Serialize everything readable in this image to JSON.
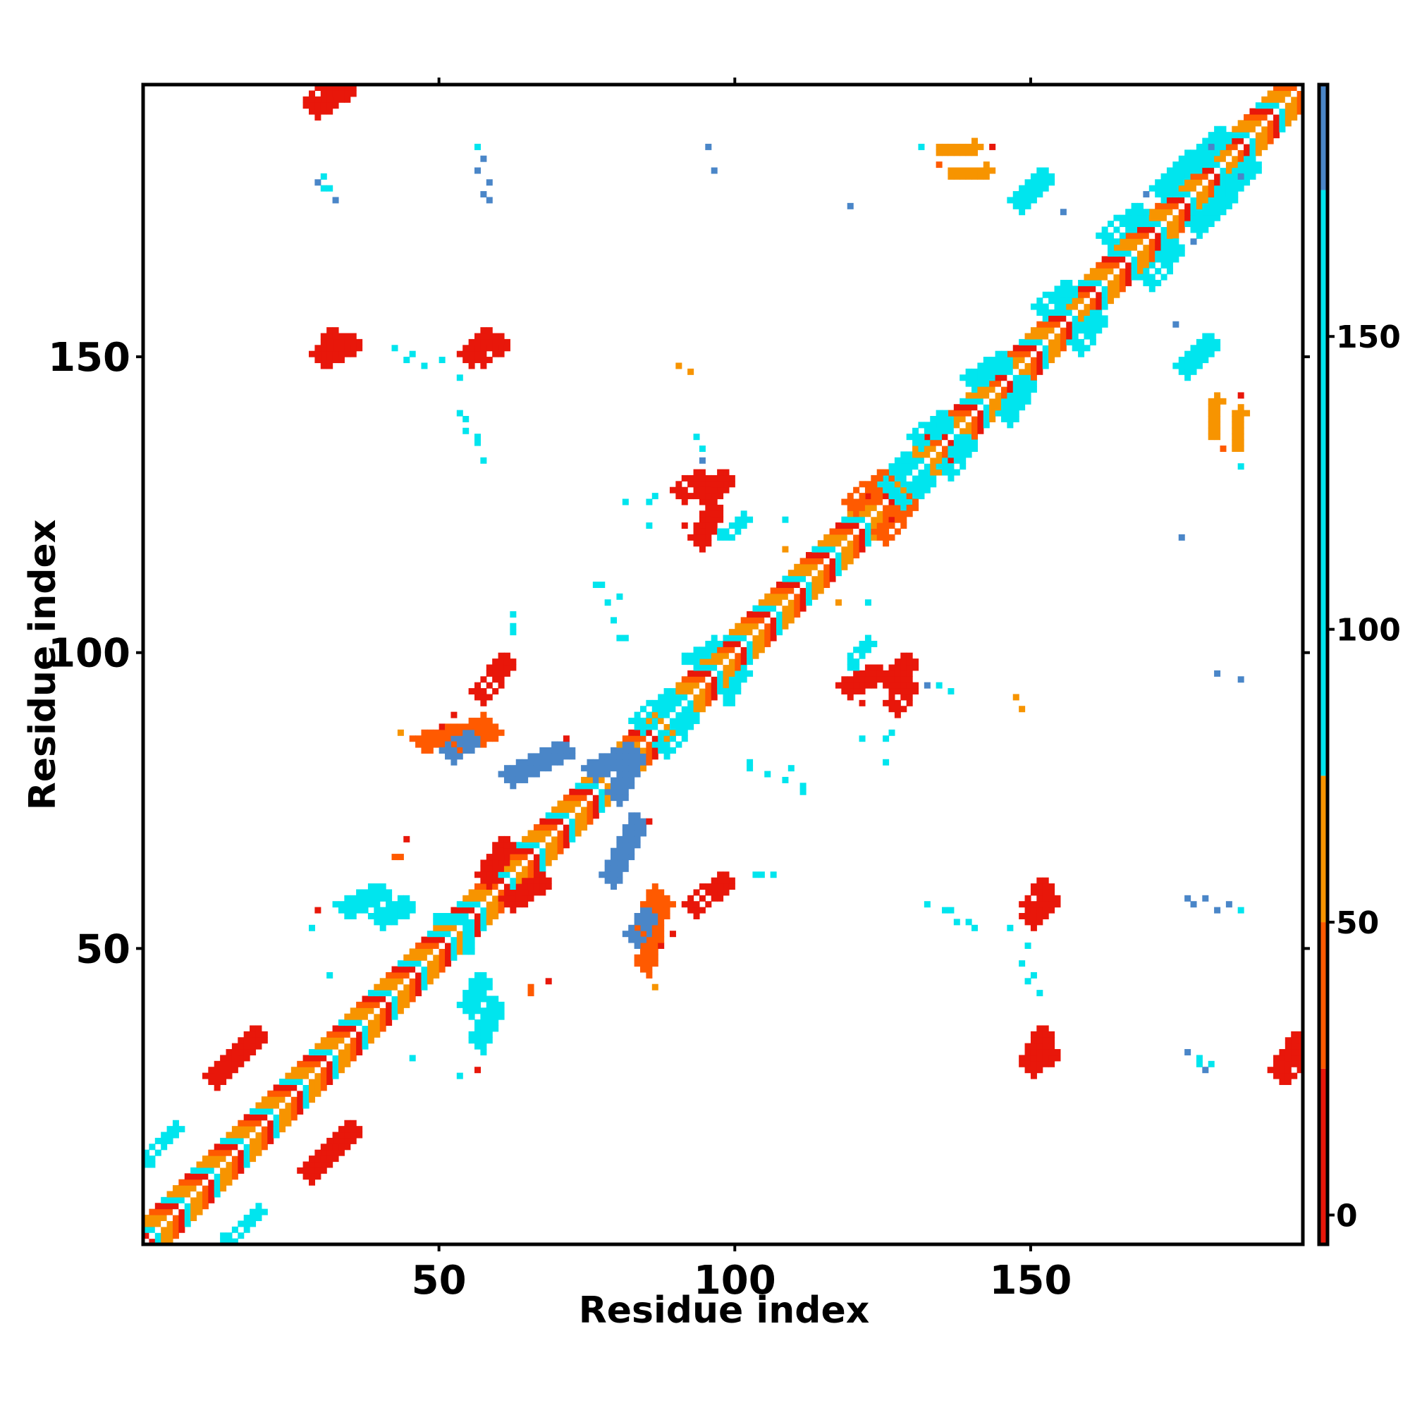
{
  "chart_data": {
    "type": "heatmap",
    "title": "",
    "xlabel": "Residue index",
    "ylabel": "Residue index",
    "xlim": [
      0,
      196
    ],
    "ylim": [
      0,
      196
    ],
    "xticks": [
      50,
      100,
      150
    ],
    "yticks": [
      50,
      100,
      150
    ],
    "colorbar": {
      "ticks": [
        0,
        50,
        100,
        150
      ],
      "range": [
        -5,
        193
      ],
      "bands": [
        {
          "from": -5,
          "to": 25,
          "color": "#e8170a"
        },
        {
          "from": 25,
          "to": 50,
          "color": "#ff5a00"
        },
        {
          "from": 50,
          "to": 75,
          "color": "#f79400"
        },
        {
          "from": 75,
          "to": 175,
          "color": "#00e5ee"
        },
        {
          "from": 175,
          "to": 193,
          "color": "#4a86c8"
        }
      ]
    },
    "colors": {
      "red": "#e8170a",
      "red_orange": "#ff5a00",
      "orange": "#f79400",
      "cyan": "#00e5ee",
      "blue": "#4a86c8"
    },
    "symmetric": true,
    "diagonal": {
      "start": 1,
      "end": 196,
      "width": 4
    },
    "segments": [
      {
        "from": [
          12,
          28
        ],
        "to": [
          20,
          36
        ],
        "width": 2,
        "color": "red"
      },
      {
        "from": [
          14,
          1
        ],
        "to": [
          20,
          6
        ],
        "width": 1,
        "color": "cyan"
      },
      {
        "from": [
          34,
          57
        ],
        "to": [
          41,
          60
        ],
        "width": 2,
        "color": "cyan"
      },
      {
        "from": [
          40,
          55
        ],
        "to": [
          45,
          58
        ],
        "width": 2,
        "color": "cyan"
      },
      {
        "from": [
          50,
          55
        ],
        "to": [
          55,
          55
        ],
        "width": 1,
        "color": "cyan"
      },
      {
        "from": [
          53,
          85
        ],
        "to": [
          59,
          88
        ],
        "width": 3,
        "color": "red_orange"
      },
      {
        "from": [
          58,
          62
        ],
        "to": [
          62,
          68
        ],
        "width": 2,
        "color": "red"
      },
      {
        "from": [
          76,
          80
        ],
        "to": [
          83,
          84
        ],
        "width": 2,
        "color": "blue"
      },
      {
        "from": [
          72,
          84
        ],
        "to": [
          62,
          79
        ],
        "width": 2,
        "color": "blue"
      },
      {
        "from": [
          47,
          85
        ],
        "to": [
          53,
          87
        ],
        "width": 2,
        "color": "red_orange"
      },
      {
        "from": [
          57,
          93
        ],
        "to": [
          62,
          99
        ],
        "width": 2,
        "color": "red"
      },
      {
        "from": [
          84,
          88
        ],
        "to": [
          90,
          93
        ],
        "width": 2,
        "color": "cyan"
      },
      {
        "from": [
          92,
          99
        ],
        "to": [
          97,
          102
        ],
        "width": 1,
        "color": "cyan"
      },
      {
        "from": [
          94,
          119
        ],
        "to": [
          97,
          125
        ],
        "width": 2,
        "color": "red"
      },
      {
        "from": [
          98,
          120
        ],
        "to": [
          102,
          123
        ],
        "width": 1,
        "color": "cyan"
      },
      {
        "from": [
          120,
          125
        ],
        "to": [
          126,
          130
        ],
        "width": 2,
        "color": "red_orange"
      },
      {
        "from": [
          126,
          128
        ],
        "to": [
          130,
          133
        ],
        "width": 2,
        "color": "cyan"
      },
      {
        "from": [
          131,
          136
        ],
        "to": [
          136,
          140
        ],
        "width": 2,
        "color": "cyan"
      },
      {
        "from": [
          140,
          146
        ],
        "to": [
          146,
          150
        ],
        "width": 2,
        "color": "cyan"
      },
      {
        "from": [
          148,
          176
        ],
        "to": [
          153,
          181
        ],
        "width": 2,
        "color": "cyan"
      },
      {
        "from": [
          152,
          158
        ],
        "to": [
          157,
          162
        ],
        "width": 2,
        "color": "cyan"
      },
      {
        "from": [
          163,
          170
        ],
        "to": [
          169,
          175
        ],
        "width": 2,
        "color": "cyan"
      },
      {
        "from": [
          172,
          178
        ],
        "to": [
          178,
          184
        ],
        "width": 2,
        "color": "cyan"
      },
      {
        "from": [
          178,
          183
        ],
        "to": [
          183,
          188
        ],
        "width": 2,
        "color": "cyan"
      },
      {
        "from": [
          150,
          57
        ],
        "to": [
          153,
          61
        ],
        "width": 2,
        "color": "red"
      },
      {
        "from": [
          150,
          31
        ],
        "to": [
          153,
          36
        ],
        "width": 2,
        "color": "red"
      },
      {
        "from": [
          192,
          29
        ],
        "to": [
          196,
          35
        ],
        "width": 2,
        "color": "red"
      },
      {
        "from": [
          29,
          193
        ],
        "to": [
          33,
          196
        ],
        "width": 2,
        "color": "red"
      },
      {
        "from": [
          30,
          150
        ],
        "to": [
          33,
          154
        ],
        "width": 2,
        "color": "red"
      },
      {
        "from": [
          55,
          150
        ],
        "to": [
          59,
          154
        ],
        "width": 2,
        "color": "red"
      },
      {
        "from": [
          91,
          127
        ],
        "to": [
          95,
          130
        ],
        "width": 2,
        "color": "red"
      },
      {
        "from": [
          126,
          95
        ],
        "to": [
          130,
          99
        ],
        "width": 2,
        "color": "red"
      },
      {
        "from": [
          83,
          52
        ],
        "to": [
          86,
          56
        ],
        "width": 2,
        "color": "blue"
      },
      {
        "from": [
          135,
          185
        ],
        "to": [
          141,
          186
        ],
        "width": 1,
        "color": "orange"
      },
      {
        "from": [
          181,
          137
        ],
        "to": [
          182,
          143
        ],
        "width": 1,
        "color": "orange"
      }
    ],
    "points": [
      {
        "x": 30,
        "y": 180,
        "color": "blue"
      },
      {
        "x": 31,
        "y": 179,
        "color": "cyan"
      },
      {
        "x": 57,
        "y": 186,
        "color": "cyan"
      },
      {
        "x": 57,
        "y": 182,
        "color": "blue"
      },
      {
        "x": 58,
        "y": 178,
        "color": "blue"
      },
      {
        "x": 96,
        "y": 186,
        "color": "blue"
      },
      {
        "x": 43,
        "y": 152,
        "color": "cyan"
      },
      {
        "x": 46,
        "y": 151,
        "color": "cyan"
      },
      {
        "x": 51,
        "y": 150,
        "color": "cyan"
      },
      {
        "x": 54,
        "y": 147,
        "color": "cyan"
      },
      {
        "x": 54,
        "y": 141,
        "color": "cyan"
      },
      {
        "x": 55,
        "y": 138,
        "color": "cyan"
      },
      {
        "x": 57,
        "y": 136,
        "color": "cyan"
      },
      {
        "x": 91,
        "y": 149,
        "color": "orange"
      },
      {
        "x": 94,
        "y": 137,
        "color": "cyan"
      },
      {
        "x": 95,
        "y": 133,
        "color": "blue"
      },
      {
        "x": 82,
        "y": 126,
        "color": "cyan"
      },
      {
        "x": 86,
        "y": 126,
        "color": "cyan"
      },
      {
        "x": 86,
        "y": 122,
        "color": "cyan"
      },
      {
        "x": 92,
        "y": 122,
        "color": "red"
      },
      {
        "x": 77,
        "y": 112,
        "color": "cyan"
      },
      {
        "x": 79,
        "y": 109,
        "color": "cyan"
      },
      {
        "x": 80,
        "y": 106,
        "color": "red_orange"
      },
      {
        "x": 81,
        "y": 103,
        "color": "cyan"
      },
      {
        "x": 63,
        "y": 105,
        "color": "cyan"
      },
      {
        "x": 118,
        "y": 109,
        "color": "orange"
      },
      {
        "x": 109,
        "y": 123,
        "color": "cyan"
      },
      {
        "x": 127,
        "y": 87,
        "color": "cyan"
      },
      {
        "x": 122,
        "y": 86,
        "color": "cyan"
      },
      {
        "x": 135,
        "y": 95,
        "color": "cyan"
      },
      {
        "x": 148,
        "y": 93,
        "color": "orange"
      },
      {
        "x": 182,
        "y": 97,
        "color": "blue"
      },
      {
        "x": 180,
        "y": 59,
        "color": "blue"
      },
      {
        "x": 177,
        "y": 59,
        "color": "blue"
      },
      {
        "x": 184,
        "y": 58,
        "color": "blue"
      },
      {
        "x": 133,
        "y": 58,
        "color": "cyan"
      },
      {
        "x": 137,
        "y": 57,
        "color": "cyan"
      },
      {
        "x": 140,
        "y": 55,
        "color": "cyan"
      },
      {
        "x": 149,
        "y": 48,
        "color": "cyan"
      },
      {
        "x": 150,
        "y": 45,
        "color": "cyan"
      },
      {
        "x": 177,
        "y": 33,
        "color": "blue"
      },
      {
        "x": 179,
        "y": 32,
        "color": "cyan"
      },
      {
        "x": 181,
        "y": 31,
        "color": "cyan"
      },
      {
        "x": 30,
        "y": 57,
        "color": "red"
      },
      {
        "x": 29,
        "y": 54,
        "color": "cyan"
      },
      {
        "x": 32,
        "y": 46,
        "color": "cyan"
      },
      {
        "x": 43,
        "y": 66,
        "color": "red_orange"
      },
      {
        "x": 45,
        "y": 69,
        "color": "red"
      },
      {
        "x": 66,
        "y": 44,
        "color": "red_orange"
      },
      {
        "x": 69,
        "y": 45,
        "color": "red"
      },
      {
        "x": 72,
        "y": 86,
        "color": "red"
      },
      {
        "x": 86,
        "y": 72,
        "color": "red"
      },
      {
        "x": 87,
        "y": 44,
        "color": "orange"
      },
      {
        "x": 88,
        "y": 51,
        "color": "red"
      },
      {
        "x": 90,
        "y": 53,
        "color": "red"
      },
      {
        "x": 103,
        "y": 82,
        "color": "cyan"
      },
      {
        "x": 106,
        "y": 80,
        "color": "cyan"
      },
      {
        "x": 110,
        "y": 81,
        "color": "cyan"
      },
      {
        "x": 112,
        "y": 78,
        "color": "cyan"
      },
      {
        "x": 104,
        "y": 63,
        "color": "cyan"
      },
      {
        "x": 107,
        "y": 63,
        "color": "cyan"
      },
      {
        "x": 170,
        "y": 178,
        "color": "blue"
      },
      {
        "x": 186,
        "y": 181,
        "color": "blue"
      },
      {
        "x": 132,
        "y": 186,
        "color": "cyan"
      },
      {
        "x": 120,
        "y": 176,
        "color": "blue"
      },
      {
        "x": 144,
        "y": 186,
        "color": "red"
      },
      {
        "x": 175,
        "y": 156,
        "color": "blue"
      },
      {
        "x": 183,
        "y": 135,
        "color": "red_orange"
      }
    ]
  }
}
